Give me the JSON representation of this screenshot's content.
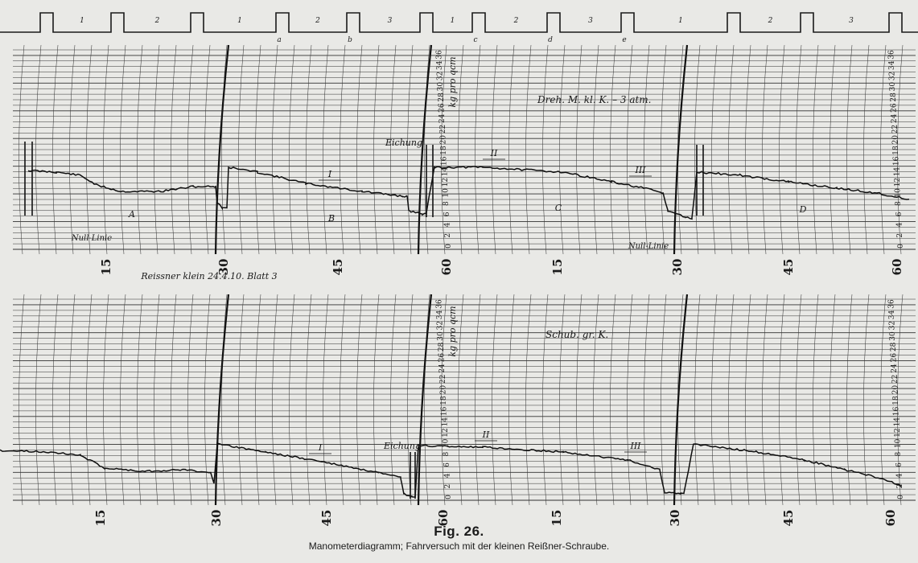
{
  "figure": {
    "number": "Fig. 26.",
    "caption": "Manometerdiagramm; Fahrversuch mit der kleinen Reißner-Schraube."
  },
  "timeline": {
    "pulse_labels": [
      "1",
      "2",
      "1",
      "2",
      "3",
      "1",
      "2",
      "3",
      "1",
      "2",
      "3"
    ],
    "event_labels": [
      "a",
      "b",
      "c",
      "d",
      "e"
    ]
  },
  "scale": {
    "unit": "kg pro qcm",
    "ticks": [
      "0",
      "2",
      "4",
      "6",
      "8",
      "10",
      "12",
      "14",
      "16",
      "18",
      "20",
      "22",
      "24",
      "26",
      "28",
      "30",
      "32",
      "34",
      "36"
    ]
  },
  "upper_chart": {
    "title": "Dreh. M. kl. K. – 3 atm.",
    "time_marks": [
      "15",
      "30",
      "45",
      "60",
      "15",
      "30",
      "45",
      "60"
    ],
    "sections": [
      "A",
      "B",
      "C",
      "D"
    ],
    "markers": [
      "I",
      "II",
      "III"
    ],
    "null_line": "Null-Linie",
    "calibration": "Eichung",
    "sheet_note": "Reissner klein 24.4.10. Blatt 3"
  },
  "lower_chart": {
    "title": "Schub. gr. K.",
    "time_marks": [
      "15",
      "30",
      "45",
      "60",
      "15",
      "30",
      "45",
      "60"
    ],
    "markers": [
      "I",
      "II",
      "III"
    ],
    "calibration": "Eichung"
  }
}
